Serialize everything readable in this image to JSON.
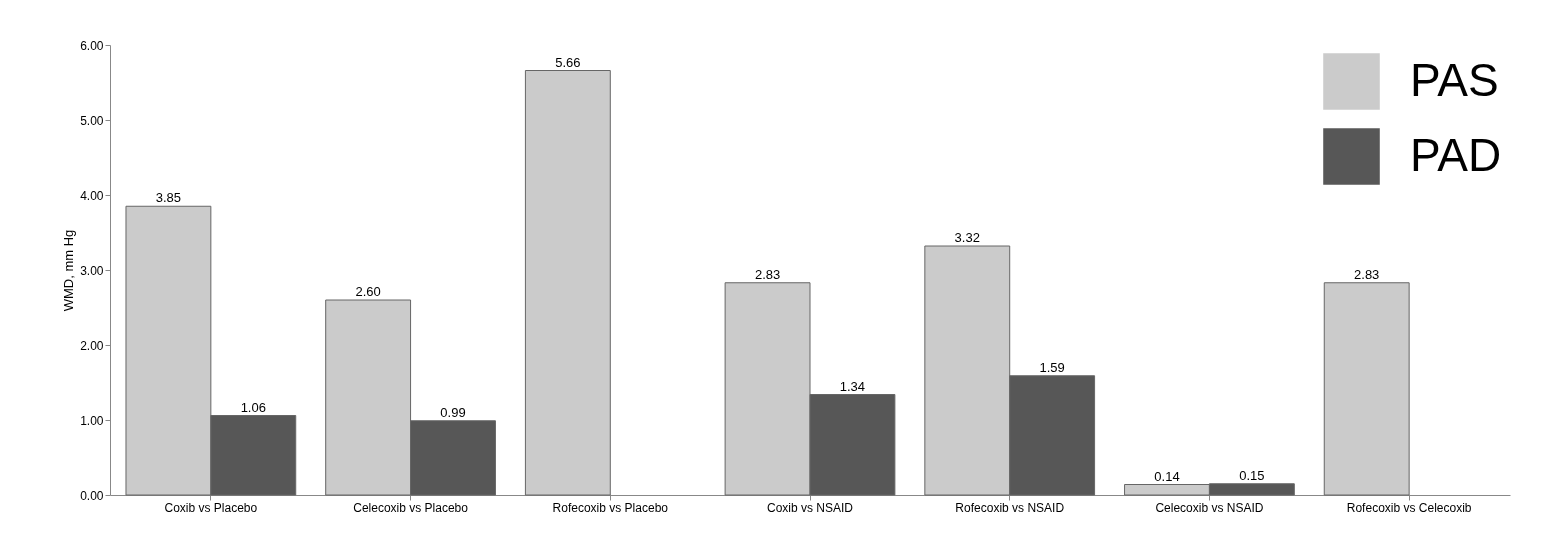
{
  "chart_data": {
    "type": "bar",
    "ylabel": "WMD, mm Hg",
    "categories": [
      "Coxib vs Placebo",
      "Celecoxib vs Placebo",
      "Rofecoxib vs Placebo",
      "Coxib vs NSAID",
      "Rofecoxib vs NSAID",
      "Celecoxib vs NSAID",
      "Rofecoxib vs Celecoxib"
    ],
    "series": [
      {
        "name": "PAS",
        "color": "#cbcbcb",
        "values": [
          3.85,
          2.6,
          5.66,
          2.83,
          3.32,
          0.14,
          2.83
        ],
        "value_labels": [
          "3.85",
          "2.60",
          "5.66",
          "2.83",
          "3.32",
          "0.14",
          "2.83"
        ]
      },
      {
        "name": "PAD",
        "color": "#575757",
        "values": [
          1.06,
          0.99,
          null,
          1.34,
          1.59,
          0.15,
          null
        ],
        "value_labels": [
          "1.06",
          "0.99",
          null,
          "1.34",
          "1.59",
          "0.15",
          null
        ]
      }
    ],
    "ylim": [
      0,
      6
    ],
    "yticks": [
      {
        "value": 0,
        "label": "0.00"
      },
      {
        "value": 1,
        "label": "1.00"
      },
      {
        "value": 2,
        "label": "2.00"
      },
      {
        "value": 3,
        "label": "3.00"
      },
      {
        "value": 4,
        "label": "4.00"
      },
      {
        "value": 5,
        "label": "5.00"
      },
      {
        "value": 6,
        "label": "6.00"
      }
    ],
    "legend": "top right"
  }
}
